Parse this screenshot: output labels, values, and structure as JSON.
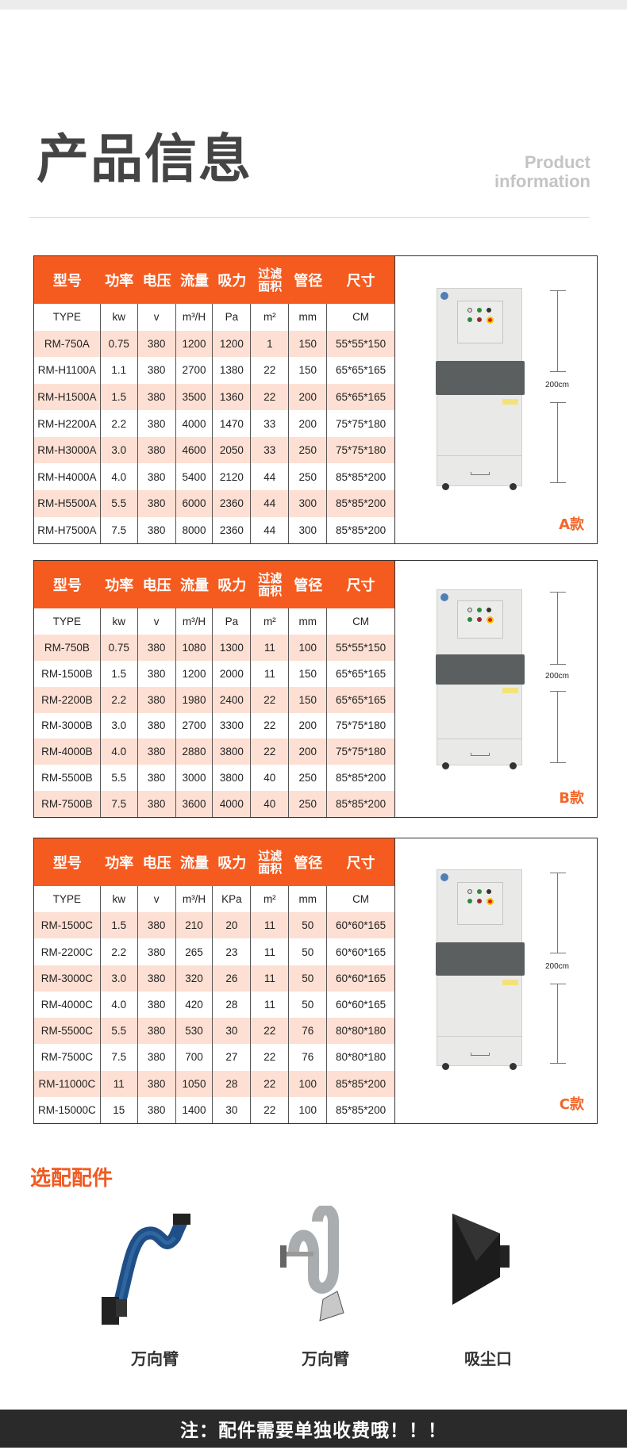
{
  "header": {
    "title": "产品信息",
    "subtitle_line1": "Product",
    "subtitle_line2": "information"
  },
  "colors": {
    "accent": "#f55b1f",
    "row_alt": "#fde0d3",
    "divider": "#c9dde0",
    "footer_bg": "#2a2a2a"
  },
  "tables": [
    {
      "variant": "A款",
      "height_label": "200cm",
      "headers": [
        "型号",
        "功率",
        "电压",
        "流量",
        "吸力",
        "过滤面积",
        "管径",
        "尺寸"
      ],
      "units": [
        "TYPE",
        "kw",
        "v",
        "m³/H",
        "Pa",
        "m²",
        "mm",
        "CM"
      ],
      "rows": [
        [
          "RM-750A",
          "0.75",
          "380",
          "1200",
          "1200",
          "1",
          "150",
          "55*55*150"
        ],
        [
          "RM-H1100A",
          "1.1",
          "380",
          "2700",
          "1380",
          "22",
          "150",
          "65*65*165"
        ],
        [
          "RM-H1500A",
          "1.5",
          "380",
          "3500",
          "1360",
          "22",
          "200",
          "65*65*165"
        ],
        [
          "RM-H2200A",
          "2.2",
          "380",
          "4000",
          "1470",
          "33",
          "200",
          "75*75*180"
        ],
        [
          "RM-H3000A",
          "3.0",
          "380",
          "4600",
          "2050",
          "33",
          "250",
          "75*75*180"
        ],
        [
          "RM-H4000A",
          "4.0",
          "380",
          "5400",
          "2120",
          "44",
          "250",
          "85*85*200"
        ],
        [
          "RM-H5500A",
          "5.5",
          "380",
          "6000",
          "2360",
          "44",
          "300",
          "85*85*200"
        ],
        [
          "RM-H7500A",
          "7.5",
          "380",
          "8000",
          "2360",
          "44",
          "300",
          "85*85*200"
        ]
      ]
    },
    {
      "variant": "B款",
      "height_label": "200cm",
      "headers": [
        "型号",
        "功率",
        "电压",
        "流量",
        "吸力",
        "过滤面积",
        "管径",
        "尺寸"
      ],
      "units": [
        "TYPE",
        "kw",
        "v",
        "m³/H",
        "Pa",
        "m²",
        "mm",
        "CM"
      ],
      "rows": [
        [
          "RM-750B",
          "0.75",
          "380",
          "1080",
          "1300",
          "11",
          "100",
          "55*55*150"
        ],
        [
          "RM-1500B",
          "1.5",
          "380",
          "1200",
          "2000",
          "11",
          "150",
          "65*65*165"
        ],
        [
          "RM-2200B",
          "2.2",
          "380",
          "1980",
          "2400",
          "22",
          "150",
          "65*65*165"
        ],
        [
          "RM-3000B",
          "3.0",
          "380",
          "2700",
          "3300",
          "22",
          "200",
          "75*75*180"
        ],
        [
          "RM-4000B",
          "4.0",
          "380",
          "2880",
          "3800",
          "22",
          "200",
          "75*75*180"
        ],
        [
          "RM-5500B",
          "5.5",
          "380",
          "3000",
          "3800",
          "40",
          "250",
          "85*85*200"
        ],
        [
          "RM-7500B",
          "7.5",
          "380",
          "3600",
          "4000",
          "40",
          "250",
          "85*85*200"
        ]
      ]
    },
    {
      "variant": "C款",
      "height_label": "200cm",
      "headers": [
        "型号",
        "功率",
        "电压",
        "流量",
        "吸力",
        "过滤面积",
        "管径",
        "尺寸"
      ],
      "units": [
        "TYPE",
        "kw",
        "v",
        "m³/H",
        "KPa",
        "m²",
        "mm",
        "CM"
      ],
      "rows": [
        [
          "RM-1500C",
          "1.5",
          "380",
          "210",
          "20",
          "11",
          "50",
          "60*60*165"
        ],
        [
          "RM-2200C",
          "2.2",
          "380",
          "265",
          "23",
          "11",
          "50",
          "60*60*165"
        ],
        [
          "RM-3000C",
          "3.0",
          "380",
          "320",
          "26",
          "11",
          "50",
          "60*60*165"
        ],
        [
          "RM-4000C",
          "4.0",
          "380",
          "420",
          "28",
          "11",
          "50",
          "60*60*165"
        ],
        [
          "RM-5500C",
          "5.5",
          "380",
          "530",
          "30",
          "22",
          "76",
          "80*80*180"
        ],
        [
          "RM-7500C",
          "7.5",
          "380",
          "700",
          "27",
          "22",
          "76",
          "80*80*180"
        ],
        [
          "RM-11000C",
          "11",
          "380",
          "1050",
          "28",
          "22",
          "100",
          "85*85*200"
        ],
        [
          "RM-15000C",
          "15",
          "380",
          "1400",
          "30",
          "22",
          "100",
          "85*85*200"
        ]
      ]
    }
  ],
  "accessories": {
    "title": "选配配件",
    "items": [
      {
        "name": "万向臂",
        "icon": "blue-extraction-arm-icon"
      },
      {
        "name": "万向臂",
        "icon": "gray-extraction-arm-icon"
      },
      {
        "name": "吸尘口",
        "icon": "suction-hood-icon"
      }
    ]
  },
  "footer": {
    "note": "注：配件需要单独收费哦！！！"
  }
}
